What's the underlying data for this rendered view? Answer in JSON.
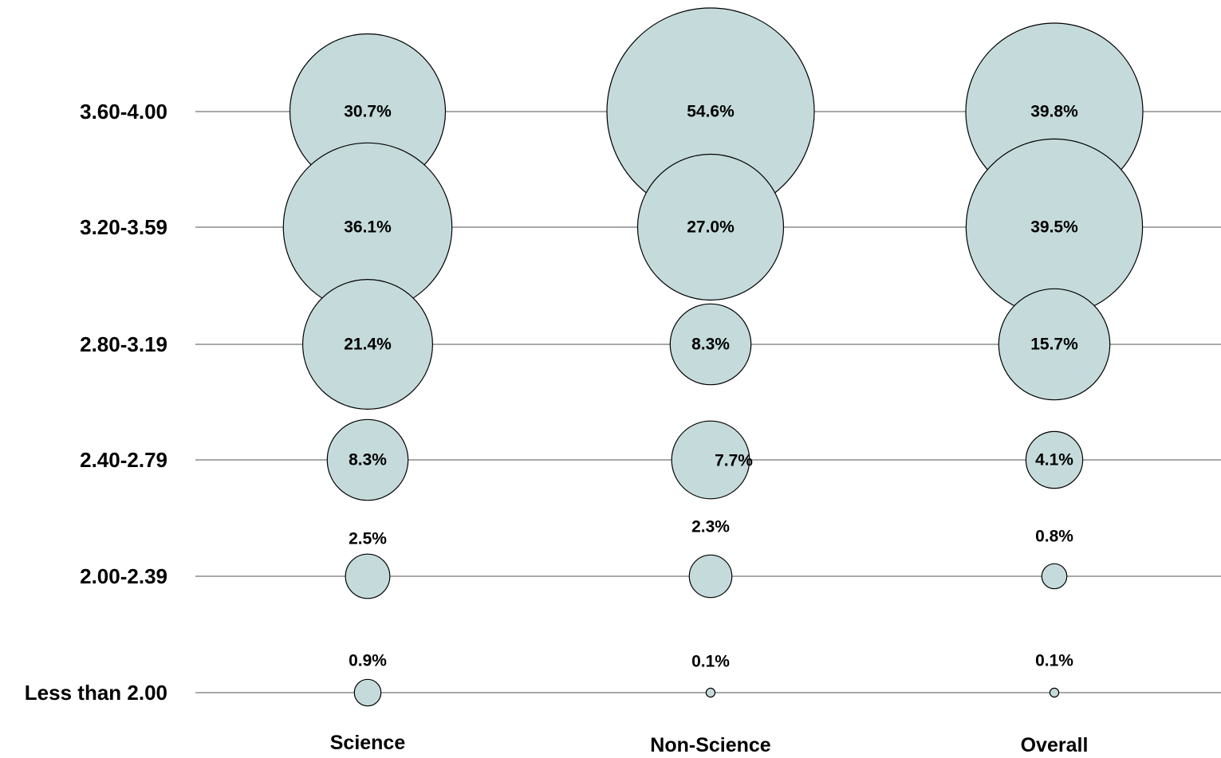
{
  "chart_data": {
    "type": "bubble",
    "rows": [
      "3.60-4.00",
      "3.20-3.59",
      "2.80-3.19",
      "2.40-2.79",
      "2.00-2.39",
      "Less than  2.00"
    ],
    "columns": [
      "Science",
      "Non-Science",
      "Overall"
    ],
    "series": [
      {
        "values": [
          30.7,
          36.1,
          21.4,
          8.3,
          2.5,
          0.9
        ],
        "labels": [
          "30.7%",
          "36.1%",
          "21.4%",
          "8.3%",
          "2.5%",
          "0.9%"
        ]
      },
      {
        "values": [
          54.6,
          27.0,
          8.3,
          7.7,
          2.3,
          0.1
        ],
        "labels": [
          "54.6%",
          "27.0%",
          "8.3%",
          "7.7%",
          "2.3%",
          "0.1%"
        ]
      },
      {
        "values": [
          39.8,
          39.5,
          15.7,
          4.1,
          0.8,
          0.1
        ],
        "labels": [
          "39.8%",
          "39.5%",
          "15.7%",
          "4.1%",
          "0.8%",
          "0.1%"
        ]
      }
    ],
    "bubble_color": "#c5dbdb",
    "outline_color": "#000000",
    "line_color": "#8c8c8c"
  }
}
